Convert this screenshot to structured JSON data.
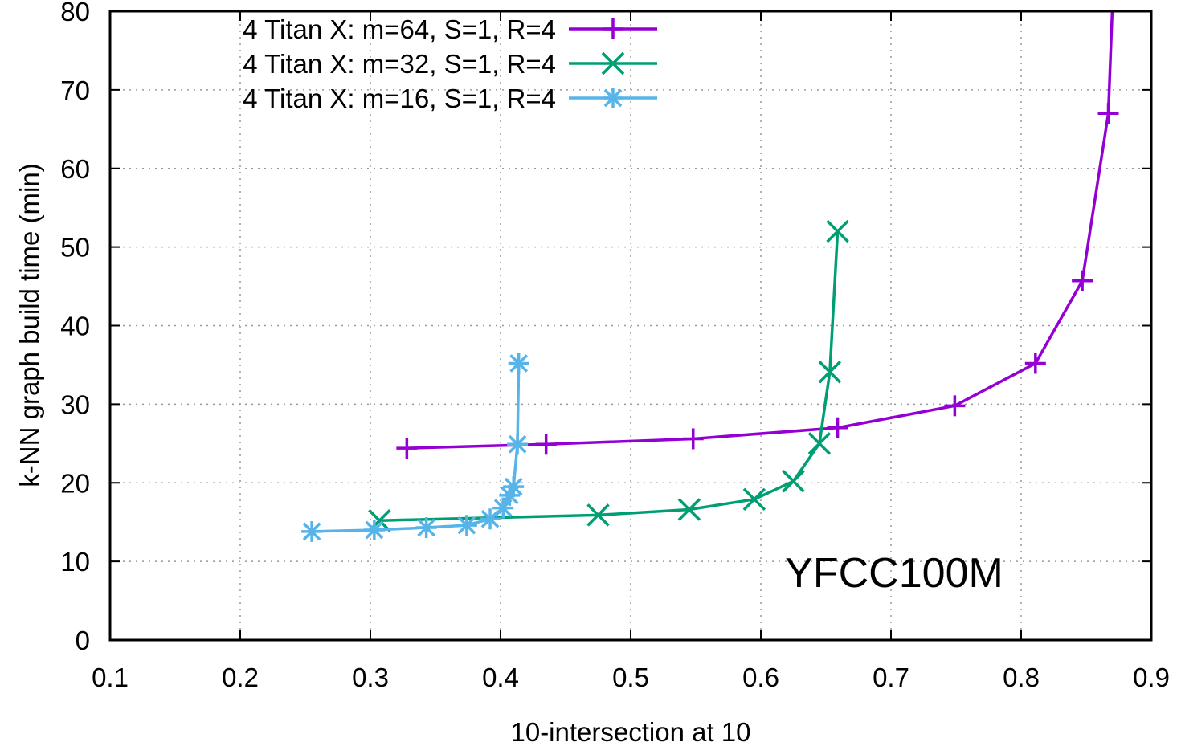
{
  "chart_data": {
    "type": "line",
    "xlabel": "10-intersection at 10",
    "ylabel": "k-NN graph build time (min)",
    "xlim": [
      0.1,
      0.9
    ],
    "ylim": [
      0,
      80
    ],
    "xticks": [
      "0.1",
      "0.2",
      "0.3",
      "0.4",
      "0.5",
      "0.6",
      "0.7",
      "0.8",
      "0.9"
    ],
    "yticks": [
      "0",
      "10",
      "20",
      "30",
      "40",
      "50",
      "60",
      "70",
      "80"
    ],
    "grid": true,
    "legend_position": "top-left",
    "annotation": "YFCC100M",
    "series": [
      {
        "name": "4 Titan X: m=64, S=1, R=4",
        "color": "#9400d3",
        "marker": "plus",
        "x": [
          0.328,
          0.435,
          0.548,
          0.659,
          0.749,
          0.811,
          0.847,
          0.867,
          0.87
        ],
        "y": [
          24.4,
          24.9,
          25.6,
          27.0,
          29.8,
          35.2,
          45.7,
          67.0,
          80.0
        ]
      },
      {
        "name": "4 Titan X: m=32, S=1, R=4",
        "color": "#009e73",
        "marker": "x",
        "x": [
          0.307,
          0.475,
          0.545,
          0.595,
          0.625,
          0.645,
          0.653,
          0.659
        ],
        "y": [
          15.2,
          15.9,
          16.6,
          17.9,
          20.2,
          25.0,
          34.1,
          52.0
        ]
      },
      {
        "name": "4 Titan X: m=16, S=1, R=4",
        "color": "#56b4e9",
        "marker": "star",
        "x": [
          0.255,
          0.303,
          0.343,
          0.374,
          0.392,
          0.402,
          0.407,
          0.41,
          0.413,
          0.414
        ],
        "y": [
          13.8,
          14.0,
          14.3,
          14.6,
          15.4,
          16.8,
          18.4,
          19.5,
          24.9,
          35.2
        ]
      }
    ]
  }
}
